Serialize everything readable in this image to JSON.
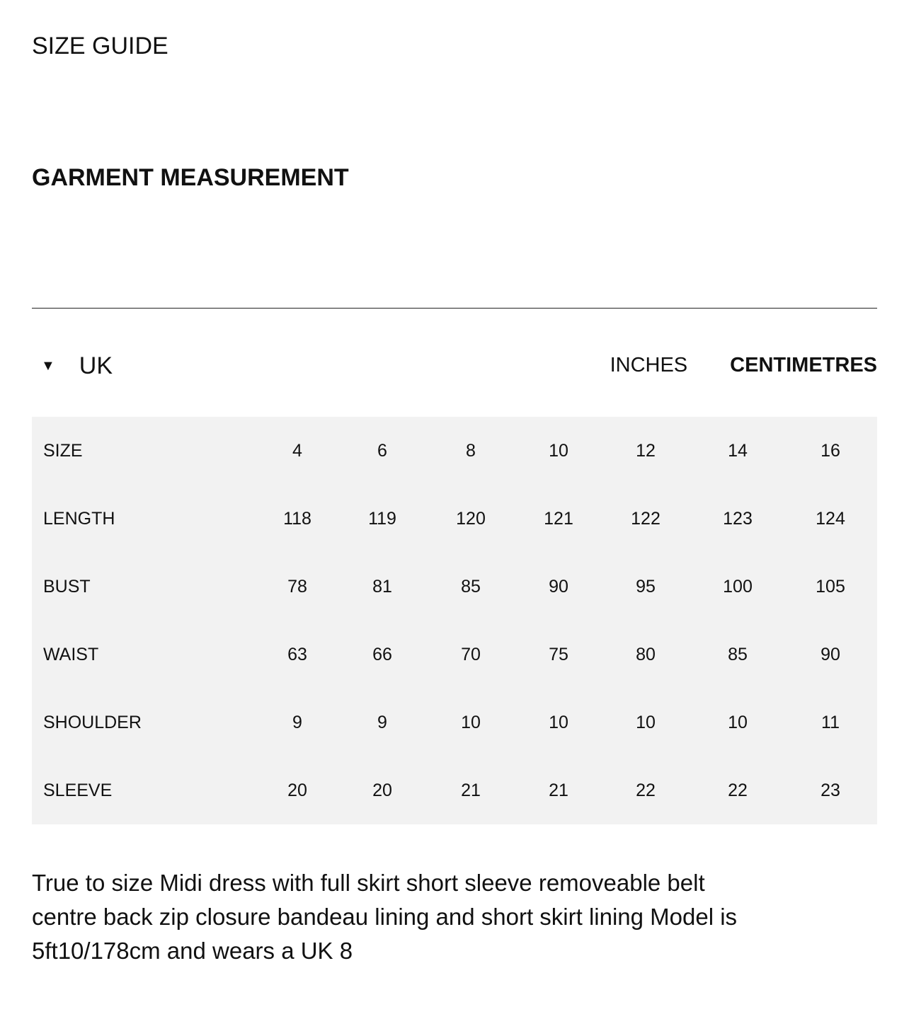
{
  "title": "SIZE GUIDE",
  "section": "GARMENT MEASUREMENT",
  "region": "UK",
  "units": [
    {
      "label": "INCHES",
      "active": false
    },
    {
      "label": "CENTIMETRES",
      "active": true
    }
  ],
  "table": {
    "rows": [
      {
        "label": "SIZE",
        "values": [
          "4",
          "6",
          "8",
          "10",
          "12",
          "14",
          "16"
        ]
      },
      {
        "label": "LENGTH",
        "values": [
          "118",
          "119",
          "120",
          "121",
          "122",
          "123",
          "124"
        ]
      },
      {
        "label": "BUST",
        "values": [
          "78",
          "81",
          "85",
          "90",
          "95",
          "100",
          "105"
        ]
      },
      {
        "label": "WAIST",
        "values": [
          "63",
          "66",
          "70",
          "75",
          "80",
          "85",
          "90"
        ]
      },
      {
        "label": "SHOULDER",
        "values": [
          "9",
          "9",
          "10",
          "10",
          "10",
          "10",
          "11"
        ]
      },
      {
        "label": "SLEEVE",
        "values": [
          "20",
          "20",
          "21",
          "21",
          "22",
          "22",
          "23"
        ]
      }
    ]
  },
  "description": "True to size Midi dress with full skirt short sleeve removeable belt centre back zip closure bandeau lining and short skirt lining Model is 5ft10/178cm and wears a UK 8"
}
